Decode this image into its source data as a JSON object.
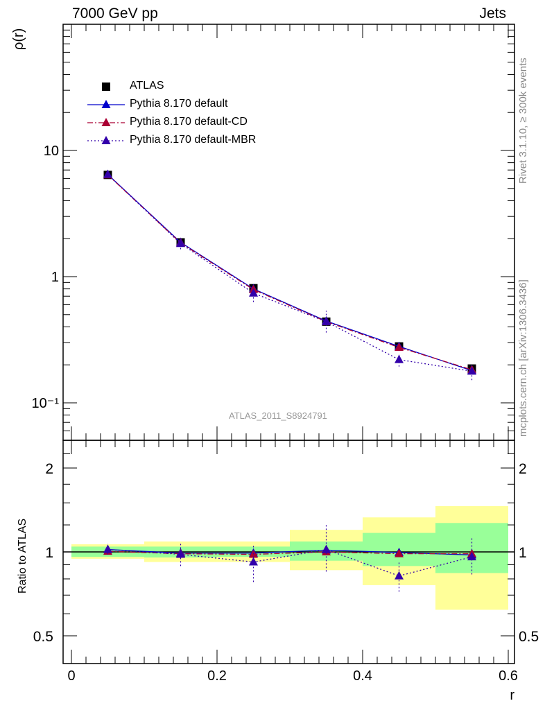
{
  "header": {
    "left": "7000 GeV pp",
    "right": "Jets"
  },
  "side": {
    "rivet": "Rivet 3.1.10, ≥ 300k events",
    "mcplots": "mcplots.cern.ch [arXiv:1306.3436]"
  },
  "analysis_label": "ATLAS_2011_S8924791",
  "chart_data": [
    {
      "type": "line",
      "panel": "main",
      "ylabel": "ρ(r)",
      "yscale": "log",
      "xlim": [
        -0.013,
        0.61
      ],
      "ylim": [
        0.05,
        100
      ],
      "ytick_labels": [
        "10⁻¹",
        "1",
        "10"
      ],
      "ytick_values": [
        0.1,
        1,
        10
      ],
      "x": [
        0.05,
        0.15,
        0.25,
        0.35,
        0.45,
        0.55
      ],
      "series": [
        {
          "name": "ATLAS",
          "color": "#000000",
          "marker": "square",
          "values": [
            6.4,
            1.87,
            0.81,
            0.44,
            0.28,
            0.187
          ]
        },
        {
          "name": "Pythia 8.170 default",
          "color": "#0000cc",
          "style": "solid",
          "marker": "triangle",
          "values": [
            6.45,
            1.87,
            0.8,
            0.445,
            0.28,
            0.18
          ]
        },
        {
          "name": "Pythia 8.170 default-CD",
          "color": "#aa0033",
          "style": "dashdot",
          "marker": "triangle",
          "values": [
            6.4,
            1.85,
            0.79,
            0.44,
            0.275,
            0.183
          ]
        },
        {
          "name": "Pythia 8.170 default-MBR",
          "color": "#3300aa",
          "style": "dotted",
          "marker": "triangle",
          "values": [
            6.45,
            1.83,
            0.74,
            0.44,
            0.22,
            0.178
          ]
        }
      ],
      "legend_position": "top-left"
    },
    {
      "type": "line",
      "panel": "ratio",
      "ylabel": "Ratio to ATLAS",
      "xlabel": "r",
      "xlim": [
        -0.013,
        0.61
      ],
      "ylim": [
        0.4,
        2.4
      ],
      "ytick_labels": [
        "0.5",
        "1",
        "2"
      ],
      "ytick_values": [
        0.5,
        1,
        2
      ],
      "xtick_labels": [
        "0",
        "0.2",
        "0.4",
        "0.6"
      ],
      "xtick_values": [
        0,
        0.2,
        0.4,
        0.6
      ],
      "bands": [
        {
          "x0": 0.0,
          "x1": 0.1,
          "yellow": [
            0.945,
            1.065
          ],
          "green": [
            0.96,
            1.045
          ]
        },
        {
          "x0": 0.1,
          "x1": 0.2,
          "yellow": [
            0.92,
            1.09
          ],
          "green": [
            0.955,
            1.045
          ]
        },
        {
          "x0": 0.2,
          "x1": 0.3,
          "yellow": [
            0.92,
            1.09
          ],
          "green": [
            0.96,
            1.045
          ]
        },
        {
          "x0": 0.3,
          "x1": 0.4,
          "yellow": [
            0.86,
            1.2
          ],
          "green": [
            0.93,
            1.09
          ]
        },
        {
          "x0": 0.4,
          "x1": 0.5,
          "yellow": [
            0.76,
            1.33
          ],
          "green": [
            0.89,
            1.17
          ]
        },
        {
          "x0": 0.5,
          "x1": 0.6,
          "yellow": [
            0.62,
            1.46
          ],
          "green": [
            0.84,
            1.27
          ]
        }
      ],
      "x": [
        0.05,
        0.15,
        0.25,
        0.35,
        0.45,
        0.55
      ],
      "series": [
        {
          "name": "Pythia 8.170 default",
          "color": "#0000cc",
          "style": "solid",
          "values": [
            1.02,
            0.99,
            0.99,
            1.015,
            0.995,
            0.975
          ]
        },
        {
          "name": "Pythia 8.170 default-CD",
          "color": "#aa0033",
          "style": "dashdot",
          "values": [
            1.005,
            0.985,
            0.98,
            1.0,
            0.985,
            0.985
          ]
        },
        {
          "name": "Pythia 8.170 default-MBR",
          "color": "#3300aa",
          "style": "dotted",
          "values": [
            1.02,
            0.98,
            0.92,
            1.02,
            0.82,
            0.96
          ],
          "err": [
            [
              0.98,
              1.07
            ],
            [
              0.89,
              1.08
            ],
            [
              0.78,
              1.06
            ],
            [
              0.85,
              1.25
            ],
            [
              0.72,
              0.92
            ],
            [
              0.83,
              1.12
            ]
          ]
        }
      ]
    }
  ]
}
